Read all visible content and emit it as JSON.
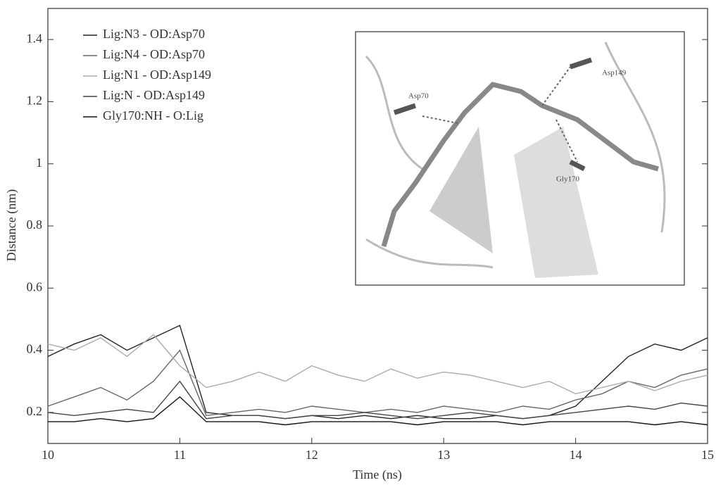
{
  "chart_data": {
    "type": "line",
    "x_label": "Time (ns)",
    "y_label": "Distance (nm)",
    "x": [
      10,
      10.2,
      10.4,
      10.6,
      10.8,
      11,
      11.2,
      11.4,
      11.6,
      11.8,
      12,
      12.2,
      12.4,
      12.6,
      12.8,
      13,
      13.2,
      13.4,
      13.6,
      13.8,
      14,
      14.2,
      14.4,
      14.6,
      14.8,
      15
    ],
    "series": [
      {
        "name": "Lig:N3 - OD:Asp70",
        "color": "#222222",
        "values": [
          0.38,
          0.42,
          0.45,
          0.4,
          0.44,
          0.48,
          0.2,
          0.19,
          0.19,
          0.18,
          0.19,
          0.18,
          0.19,
          0.18,
          0.19,
          0.18,
          0.18,
          0.19,
          0.18,
          0.19,
          0.22,
          0.3,
          0.38,
          0.42,
          0.4,
          0.44
        ]
      },
      {
        "name": "Lig:N4 - OD:Asp70",
        "color": "#666666",
        "values": [
          0.22,
          0.25,
          0.28,
          0.24,
          0.3,
          0.4,
          0.19,
          0.2,
          0.21,
          0.2,
          0.22,
          0.21,
          0.2,
          0.21,
          0.2,
          0.22,
          0.21,
          0.2,
          0.22,
          0.21,
          0.24,
          0.26,
          0.3,
          0.28,
          0.32,
          0.34
        ]
      },
      {
        "name": "Lig:N1 - OD:Asp149",
        "color": "#aaaaaa",
        "values": [
          0.42,
          0.4,
          0.44,
          0.38,
          0.45,
          0.35,
          0.28,
          0.3,
          0.33,
          0.3,
          0.35,
          0.32,
          0.3,
          0.34,
          0.31,
          0.33,
          0.32,
          0.3,
          0.28,
          0.3,
          0.26,
          0.28,
          0.3,
          0.27,
          0.3,
          0.32
        ]
      },
      {
        "name": "Lig:N  - OD:Asp149",
        "color": "#444444",
        "values": [
          0.2,
          0.19,
          0.2,
          0.21,
          0.2,
          0.3,
          0.18,
          0.19,
          0.19,
          0.18,
          0.19,
          0.19,
          0.2,
          0.19,
          0.18,
          0.19,
          0.2,
          0.19,
          0.18,
          0.19,
          0.2,
          0.21,
          0.22,
          0.21,
          0.23,
          0.22
        ]
      },
      {
        "name": "Gly170:NH - O:Lig",
        "color": "#111111",
        "values": [
          0.17,
          0.17,
          0.18,
          0.17,
          0.18,
          0.25,
          0.17,
          0.17,
          0.17,
          0.16,
          0.17,
          0.17,
          0.17,
          0.17,
          0.16,
          0.17,
          0.17,
          0.17,
          0.16,
          0.17,
          0.17,
          0.17,
          0.17,
          0.16,
          0.17,
          0.16
        ]
      }
    ],
    "xlim": [
      10,
      15
    ],
    "xticks": [
      10,
      11,
      12,
      13,
      14,
      15
    ],
    "ylim": [
      0.1,
      1.5
    ],
    "yticks": [
      0.2,
      0.4,
      0.6,
      0.8,
      1,
      1.2,
      1.4
    ],
    "legend": "upper-left",
    "inset_labels": [
      "Asp70",
      "Asp149",
      "Gly170"
    ]
  }
}
